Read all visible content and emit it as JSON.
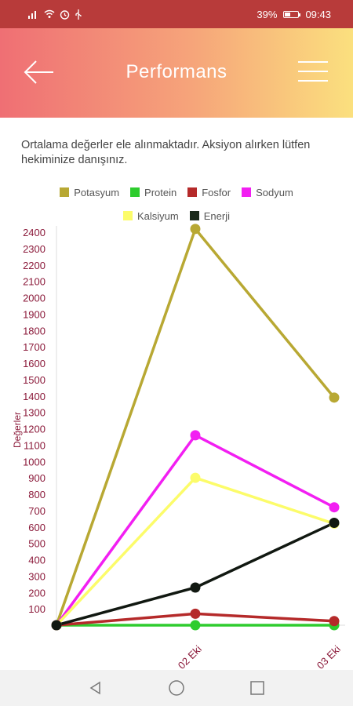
{
  "status_bar": {
    "signal_text": "•••l ≈ ⏰ ✣",
    "battery_text": "39%",
    "battery_level": 0.39,
    "time": "09:43"
  },
  "app_bar": {
    "title": "Performans",
    "back_icon": "arrow-left-icon",
    "menu_icon": "hamburger-menu-icon"
  },
  "info_text": "Ortalama değerler ele alınmaktadır. Aksiyon alırken lütfen hekiminize danışınız.",
  "legend": [
    {
      "label": "Potasyum",
      "color": "#b8a833"
    },
    {
      "label": "Protein",
      "color": "#2ecc2e"
    },
    {
      "label": "Fosfor",
      "color": "#b52a2a"
    },
    {
      "label": "Sodyum",
      "color": "#f21ff2"
    },
    {
      "label": "Kalsiyum",
      "color": "#fcfc6a"
    },
    {
      "label": "Enerji",
      "color": "#1c2b1c"
    }
  ],
  "chart_data": {
    "type": "line",
    "ylabel": "Değerler",
    "xlabel": "",
    "x": [
      "",
      "02 Eki",
      "03 Eki"
    ],
    "ylim": [
      0,
      2400
    ],
    "yticks": [
      100,
      200,
      300,
      400,
      500,
      600,
      700,
      800,
      900,
      1000,
      1100,
      1200,
      1300,
      1400,
      1500,
      1600,
      1700,
      1800,
      1900,
      2000,
      2100,
      2200,
      2300,
      2400
    ],
    "series": [
      {
        "name": "Potasyum",
        "color": "#b8a833",
        "values": [
          0,
          2420,
          1390
        ]
      },
      {
        "name": "Protein",
        "color": "#2ecc2e",
        "values": [
          0,
          0,
          0
        ]
      },
      {
        "name": "Fosfor",
        "color": "#b52a2a",
        "values": [
          0,
          70,
          25
        ]
      },
      {
        "name": "Sodyum",
        "color": "#f21ff2",
        "values": [
          0,
          1160,
          720
        ]
      },
      {
        "name": "Kalsiyum",
        "color": "#fcfc6a",
        "values": [
          0,
          900,
          620
        ]
      },
      {
        "name": "Enerji",
        "color": "#111811",
        "values": [
          0,
          230,
          625
        ]
      }
    ]
  },
  "nav_bar": {
    "back_icon": "nav-back-icon",
    "home_icon": "nav-home-icon",
    "recents_icon": "nav-recents-icon"
  }
}
